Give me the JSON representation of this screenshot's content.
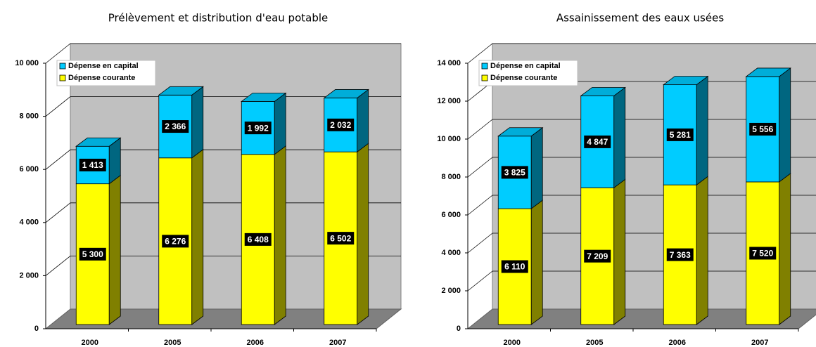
{
  "chart_data": [
    {
      "type": "bar3d-stacked",
      "title": "Prélèvement et distribution d'eau potable",
      "categories": [
        "2000",
        "2005",
        "2006",
        "2007"
      ],
      "series": [
        {
          "name": "Dépense courante",
          "color": "#ffff00",
          "values": [
            5300,
            6276,
            6408,
            6502
          ],
          "value_labels": [
            "5 300",
            "6 276",
            "6 408",
            "6 502"
          ]
        },
        {
          "name": "Dépense en capital",
          "color": "#00ccff",
          "values": [
            1413,
            2366,
            1992,
            2032
          ],
          "value_labels": [
            "1 413",
            "2 366",
            "1 992",
            "2 032"
          ]
        }
      ],
      "ylim": [
        0,
        10000
      ],
      "yticks": [
        0,
        {
          "value": 2000,
          "label": "2 000"
        },
        {
          "value": 4000,
          "label": "4 000"
        },
        {
          "value": 6000,
          "label": "6 000"
        },
        {
          "value": 8000,
          "label": "8 000"
        },
        {
          "value": 10000,
          "label": "10 000"
        }
      ],
      "grid": true,
      "legend": "top-left"
    },
    {
      "type": "bar3d-stacked",
      "title": "Assainissement des eaux usées",
      "categories": [
        "2000",
        "2005",
        "2006",
        "2007"
      ],
      "series": [
        {
          "name": "Dépense courante",
          "color": "#ffff00",
          "values": [
            6110,
            7209,
            7363,
            7520
          ],
          "value_labels": [
            "6 110",
            "7 209",
            "7 363",
            "7 520"
          ]
        },
        {
          "name": "Dépense en capital",
          "color": "#00ccff",
          "values": [
            3825,
            4847,
            5281,
            5556
          ],
          "value_labels": [
            "3 825",
            "4 847",
            "5 281",
            "5 556"
          ]
        }
      ],
      "ylim": [
        0,
        14000
      ],
      "yticks": [
        0,
        {
          "value": 2000,
          "label": "2 000"
        },
        {
          "value": 4000,
          "label": "4 000"
        },
        {
          "value": 6000,
          "label": "6 000"
        },
        {
          "value": 8000,
          "label": "8 000"
        },
        {
          "value": 10000,
          "label": "10 000"
        },
        {
          "value": 12000,
          "label": "12 000"
        },
        {
          "value": 14000,
          "label": "14 000"
        }
      ],
      "grid": true,
      "legend": "top-left"
    }
  ]
}
